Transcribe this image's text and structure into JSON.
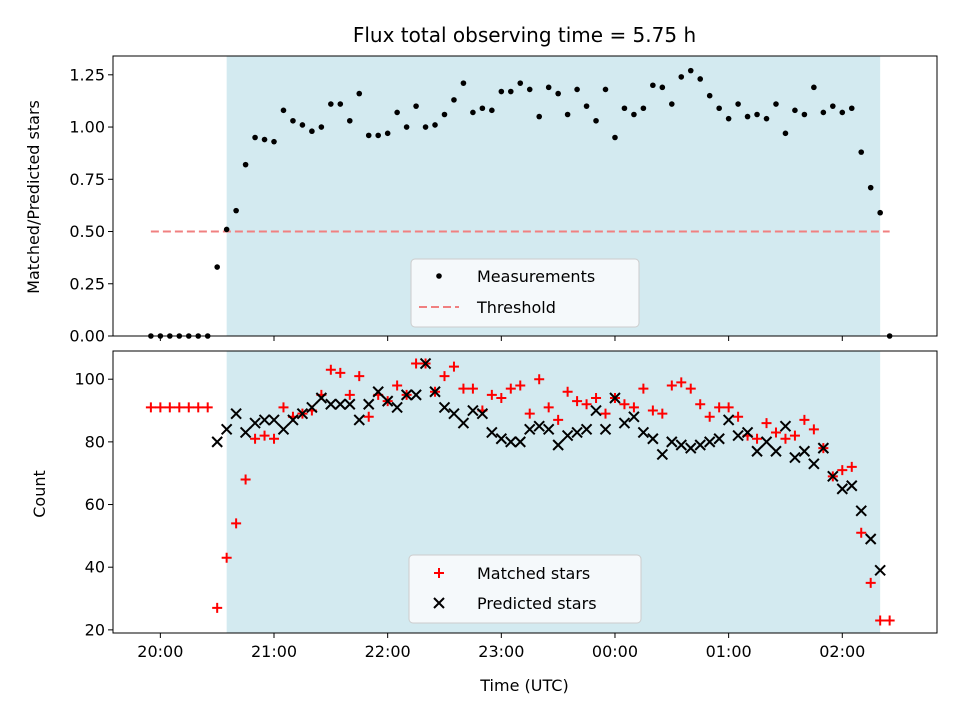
{
  "chart_data": [
    {
      "type": "scatter",
      "title": "Flux total observing time = 5.75 h",
      "xlabel": "",
      "ylabel": "Matched/Predicted stars",
      "ylim": [
        0,
        1.34
      ],
      "yticks": [
        "0.00",
        "0.25",
        "0.50",
        "0.75",
        "1.00",
        "1.25"
      ],
      "shaded_region": {
        "start": "20:35",
        "end": "02:20",
        "color": "#d3eaf0"
      },
      "threshold": {
        "name": "Threshold",
        "value": 0.5,
        "start": "19:55",
        "end": "02:25",
        "color": "#f08080"
      },
      "legend": {
        "placement": "bottom-center",
        "entries": [
          "Measurements",
          "Threshold"
        ]
      },
      "series": [
        {
          "name": "Measurements",
          "x": [
            "19:55",
            "20:00",
            "20:05",
            "20:10",
            "20:15",
            "20:20",
            "20:25",
            "20:30",
            "20:35",
            "20:40",
            "20:45",
            "20:50",
            "20:55",
            "21:00",
            "21:05",
            "21:10",
            "21:15",
            "21:20",
            "21:25",
            "21:30",
            "21:35",
            "21:40",
            "21:45",
            "21:50",
            "21:55",
            "22:00",
            "22:05",
            "22:10",
            "22:15",
            "22:20",
            "22:25",
            "22:30",
            "22:35",
            "22:40",
            "22:45",
            "22:50",
            "22:55",
            "23:00",
            "23:05",
            "23:10",
            "23:15",
            "23:20",
            "23:25",
            "23:30",
            "23:35",
            "23:40",
            "23:45",
            "23:50",
            "23:55",
            "00:00",
            "00:05",
            "00:10",
            "00:15",
            "00:20",
            "00:25",
            "00:30",
            "00:35",
            "00:40",
            "00:45",
            "00:50",
            "00:55",
            "01:00",
            "01:05",
            "01:10",
            "01:15",
            "01:20",
            "01:25",
            "01:30",
            "01:35",
            "01:40",
            "01:45",
            "01:50",
            "01:55",
            "02:00",
            "02:05",
            "02:10",
            "02:15",
            "02:20",
            "02:25"
          ],
          "values": [
            0,
            0,
            0,
            0,
            0,
            0,
            0,
            0.33,
            0.51,
            0.6,
            0.82,
            0.95,
            0.94,
            0.93,
            1.08,
            1.03,
            1.01,
            0.98,
            1.0,
            1.11,
            1.11,
            1.03,
            1.16,
            0.96,
            0.96,
            0.97,
            1.07,
            1.0,
            1.1,
            1.0,
            1.01,
            1.06,
            1.13,
            1.21,
            1.07,
            1.09,
            1.08,
            1.17,
            1.17,
            1.21,
            1.18,
            1.05,
            1.19,
            1.16,
            1.06,
            1.18,
            1.1,
            1.03,
            1.18,
            0.95,
            1.09,
            1.06,
            1.09,
            1.2,
            1.19,
            1.11,
            1.24,
            1.27,
            1.23,
            1.15,
            1.09,
            1.04,
            1.11,
            1.05,
            1.06,
            1.04,
            1.11,
            0.97,
            1.08,
            1.06,
            1.19,
            1.07,
            1.1,
            1.07,
            1.09,
            0.88,
            0.71,
            0.59,
            0
          ]
        }
      ]
    },
    {
      "type": "scatter",
      "title": "",
      "xlabel": "Time (UTC)",
      "ylabel": "Count",
      "ylim": [
        19,
        109
      ],
      "yticks": [
        "20",
        "40",
        "60",
        "80",
        "100"
      ],
      "xticks": [
        "20:00",
        "21:00",
        "22:00",
        "23:00",
        "00:00",
        "01:00",
        "02:00"
      ],
      "xlim": [
        "19:35",
        "02:50"
      ],
      "shaded_region": {
        "start": "20:35",
        "end": "02:20",
        "color": "#d3eaf0"
      },
      "legend": {
        "placement": "bottom-center",
        "entries": [
          "Matched stars",
          "Predicted stars"
        ]
      },
      "series": [
        {
          "name": "Matched stars",
          "marker": "plus",
          "color": "#ff0000",
          "x": [
            "19:55",
            "20:00",
            "20:05",
            "20:10",
            "20:15",
            "20:20",
            "20:25",
            "20:30",
            "20:35",
            "20:40",
            "20:45",
            "20:50",
            "20:55",
            "21:00",
            "21:05",
            "21:10",
            "21:15",
            "21:20",
            "21:25",
            "21:30",
            "21:35",
            "21:40",
            "21:45",
            "21:50",
            "21:55",
            "22:00",
            "22:05",
            "22:10",
            "22:15",
            "22:20",
            "22:25",
            "22:30",
            "22:35",
            "22:40",
            "22:45",
            "22:50",
            "22:55",
            "23:00",
            "23:05",
            "23:10",
            "23:15",
            "23:20",
            "23:25",
            "23:30",
            "23:35",
            "23:40",
            "23:45",
            "23:50",
            "23:55",
            "00:00",
            "00:05",
            "00:10",
            "00:15",
            "00:20",
            "00:25",
            "00:30",
            "00:35",
            "00:40",
            "00:45",
            "00:50",
            "00:55",
            "01:00",
            "01:05",
            "01:10",
            "01:15",
            "01:20",
            "01:25",
            "01:30",
            "01:35",
            "01:40",
            "01:45",
            "01:50",
            "01:55",
            "02:00",
            "02:05",
            "02:10",
            "02:15",
            "02:20",
            "02:25"
          ],
          "values": [
            91,
            91,
            91,
            91,
            91,
            91,
            91,
            27,
            43,
            54,
            68,
            81,
            82,
            81,
            91,
            88,
            89,
            90,
            95,
            103,
            102,
            95,
            101,
            88,
            95,
            93,
            98,
            95,
            105,
            105,
            96,
            101,
            104,
            97,
            97,
            90,
            95,
            94,
            97,
            98,
            89,
            100,
            91,
            87,
            96,
            93,
            92,
            94,
            89,
            94,
            92,
            91,
            97,
            90,
            89,
            98,
            99,
            97,
            92,
            88,
            91,
            91,
            88,
            82,
            81,
            86,
            83,
            81,
            82,
            87,
            84,
            78,
            69,
            71,
            72,
            51,
            35,
            23,
            23
          ]
        },
        {
          "name": "Predicted stars",
          "marker": "x",
          "color": "#000000",
          "x": [
            "20:30",
            "20:35",
            "20:40",
            "20:45",
            "20:50",
            "20:55",
            "21:00",
            "21:05",
            "21:10",
            "21:15",
            "21:20",
            "21:25",
            "21:30",
            "21:35",
            "21:40",
            "21:45",
            "21:50",
            "21:55",
            "22:00",
            "22:05",
            "22:10",
            "22:15",
            "22:20",
            "22:25",
            "22:30",
            "22:35",
            "22:40",
            "22:45",
            "22:50",
            "22:55",
            "23:00",
            "23:05",
            "23:10",
            "23:15",
            "23:20",
            "23:25",
            "23:30",
            "23:35",
            "23:40",
            "23:45",
            "23:50",
            "23:55",
            "00:00",
            "00:05",
            "00:10",
            "00:15",
            "00:20",
            "00:25",
            "00:30",
            "00:35",
            "00:40",
            "00:45",
            "00:50",
            "00:55",
            "01:00",
            "01:05",
            "01:10",
            "01:15",
            "01:20",
            "01:25",
            "01:30",
            "01:35",
            "01:40",
            "01:45",
            "01:50",
            "01:55",
            "02:00",
            "02:05",
            "02:10",
            "02:15",
            "02:20"
          ],
          "values": [
            80,
            84,
            89,
            83,
            86,
            87,
            87,
            84,
            87,
            89,
            91,
            94,
            92,
            92,
            92,
            87,
            92,
            96,
            93,
            91,
            95,
            95,
            105,
            96,
            91,
            89,
            86,
            90,
            89,
            83,
            81,
            80,
            80,
            84,
            85,
            84,
            79,
            82,
            83,
            84,
            90,
            84,
            94,
            86,
            88,
            83,
            81,
            76,
            80,
            79,
            78,
            79,
            80,
            81,
            87,
            82,
            83,
            77,
            80,
            77,
            85,
            75,
            77,
            73,
            78,
            69,
            65,
            66,
            58,
            49,
            39
          ]
        }
      ]
    }
  ]
}
